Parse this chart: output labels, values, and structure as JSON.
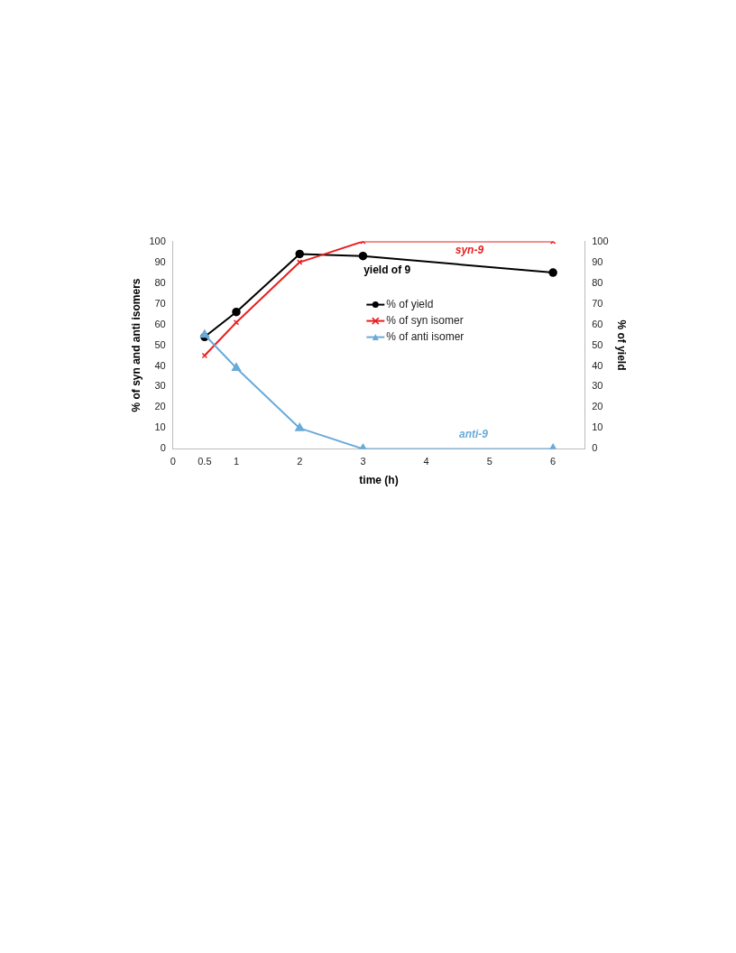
{
  "chart_data": {
    "type": "line",
    "xlabel": "time (h)",
    "ylabel": "% of syn and anti isomers",
    "y2label": "% of yield",
    "x": [
      0.5,
      1,
      2,
      3,
      6
    ],
    "xlim": [
      0,
      6.5
    ],
    "xticks": [
      0,
      0.5,
      1,
      2,
      3,
      4,
      5,
      6
    ],
    "ylim": [
      0,
      100
    ],
    "yticks": [
      0,
      10,
      20,
      30,
      40,
      50,
      60,
      70,
      80,
      90,
      100
    ],
    "y2lim": [
      0,
      100
    ],
    "y2ticks": [
      0,
      10,
      20,
      30,
      40,
      50,
      60,
      70,
      80,
      90,
      100
    ],
    "grid": false,
    "legend": "top right",
    "line_style": "solid",
    "series": [
      {
        "name": "% of yield",
        "color": "#000000",
        "values": [
          54,
          66,
          94,
          93,
          85
        ],
        "axis": "y2",
        "marker": "circle"
      },
      {
        "name": "% of syn isomer",
        "color": "#e8201f",
        "values": [
          45,
          61,
          90,
          100,
          100
        ],
        "marker": "cross"
      },
      {
        "name": "% of anti isomer",
        "color": "#6aaad8",
        "values": [
          55,
          39,
          10,
          0,
          0
        ],
        "marker": "triangle"
      }
    ],
    "annotations": [
      "syn-9",
      "yield of 9",
      "anti-9"
    ]
  }
}
